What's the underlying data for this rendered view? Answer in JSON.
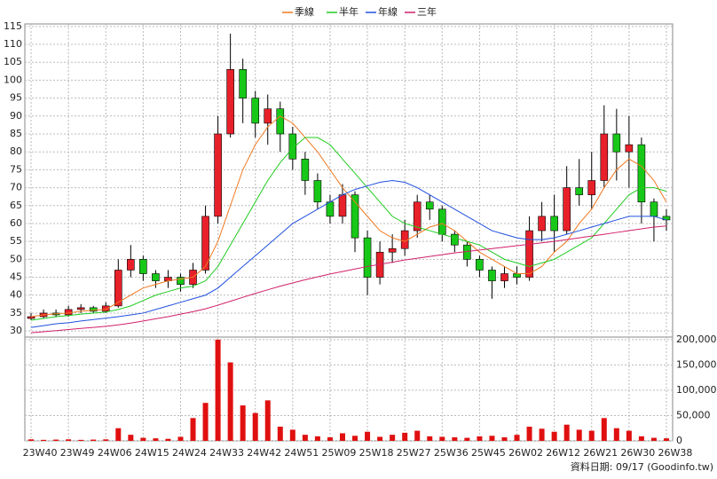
{
  "chart_data": {
    "type": "candlestick",
    "source": "資料日期: 09/17  (Goodinfo.tw)",
    "categories": [
      "23W40",
      null,
      null,
      "23W49",
      null,
      null,
      "24W06",
      null,
      null,
      "24W15",
      null,
      null,
      "24W24",
      null,
      null,
      "24W33",
      null,
      null,
      "24W42",
      null,
      null,
      "24W51",
      null,
      null,
      "25W09",
      null,
      null,
      "25W18",
      null,
      null,
      "25W27",
      null,
      null,
      "25W36",
      null,
      null,
      "25W45",
      null,
      null,
      "26W02",
      null,
      null,
      "26W12",
      null,
      null,
      "26W21",
      null,
      null,
      "26W30",
      null,
      null,
      "26W38"
    ],
    "open": [
      33.5,
      34,
      35,
      34.5,
      36,
      36.5,
      35.5,
      37,
      47,
      50,
      46,
      44,
      45,
      43,
      47,
      62,
      85,
      103,
      95,
      88,
      92,
      85,
      78,
      72,
      66,
      62,
      68,
      56,
      45,
      52,
      53,
      58,
      66,
      64,
      57,
      54,
      50,
      47,
      44,
      46,
      45,
      58,
      62,
      58,
      70,
      68,
      72,
      85,
      80,
      82,
      66,
      62
    ],
    "high": [
      35,
      36,
      36,
      37,
      37.5,
      37,
      38,
      50,
      54,
      51,
      47,
      47,
      46,
      49,
      65,
      90,
      113,
      106,
      97,
      96,
      94,
      87,
      80,
      74,
      68,
      71,
      69,
      58,
      55,
      57,
      61,
      68,
      68,
      65,
      58,
      55,
      51,
      48,
      48,
      48,
      62,
      66,
      68,
      76,
      78,
      80,
      93,
      92,
      90,
      84,
      67,
      64
    ],
    "low": [
      33,
      33.5,
      33.8,
      34,
      35,
      35,
      35,
      36.5,
      45,
      44,
      42,
      42,
      41,
      42,
      46,
      60,
      84,
      88,
      84,
      82,
      80,
      75,
      68,
      64,
      60,
      60,
      52,
      40,
      43,
      49,
      51,
      56,
      61,
      55,
      52,
      48,
      45,
      39,
      42,
      43,
      44,
      55,
      52,
      57,
      65,
      64,
      70,
      72,
      70,
      60,
      55,
      58
    ],
    "close": [
      34,
      35,
      34.5,
      36,
      36.5,
      35.5,
      37,
      47,
      50,
      46,
      44,
      45,
      43,
      47,
      62,
      85,
      103,
      95,
      88,
      92,
      85,
      78,
      72,
      66,
      62,
      68,
      56,
      45,
      52,
      53,
      58,
      66,
      64,
      57,
      54,
      50,
      47,
      44,
      46,
      45,
      58,
      62,
      58,
      70,
      68,
      72,
      85,
      80,
      82,
      66,
      62,
      61
    ],
    "up_color": "#e8202a",
    "down_color": "#18c818",
    "volume": [
      3000,
      2000,
      2500,
      3000,
      2000,
      2500,
      3000,
      25000,
      12000,
      6000,
      5000,
      4000,
      8000,
      45000,
      75000,
      200000,
      155000,
      70000,
      55000,
      80000,
      28000,
      22000,
      12000,
      9000,
      7000,
      15000,
      10000,
      18000,
      8000,
      12000,
      16000,
      20000,
      9000,
      8000,
      7000,
      6000,
      9000,
      10000,
      7000,
      12000,
      28000,
      24000,
      18000,
      32000,
      22000,
      20000,
      45000,
      25000,
      20000,
      9000,
      6000,
      5000
    ],
    "volume_color": "#e01010",
    "series": [
      {
        "name": "季線",
        "color": "#f07820",
        "values": [
          34,
          34.5,
          34.8,
          35,
          35.5,
          35.8,
          36,
          38,
          40,
          42,
          43,
          44,
          44.5,
          45,
          48,
          55,
          65,
          75,
          82,
          87,
          90,
          88,
          84,
          80,
          75,
          70,
          66,
          62,
          58,
          56,
          55,
          57,
          59,
          60,
          58,
          55,
          52,
          50,
          48,
          46,
          46,
          48,
          52,
          55,
          60,
          64,
          70,
          75,
          78,
          76,
          72,
          66
        ]
      },
      {
        "name": "半年",
        "color": "#20cc20",
        "values": [
          33,
          33.5,
          34,
          34.3,
          34.7,
          35,
          35.3,
          36,
          37,
          38.5,
          40,
          41,
          42,
          42.5,
          44,
          48,
          54,
          60,
          66,
          72,
          77,
          81,
          84,
          84,
          82,
          78,
          74,
          70,
          66,
          62,
          60,
          59,
          58,
          57,
          56,
          55,
          54,
          52,
          50,
          49,
          48,
          49,
          50,
          52,
          54,
          56,
          60,
          64,
          68,
          70,
          70,
          69
        ]
      },
      {
        "name": "年線",
        "color": "#2050e0",
        "values": [
          31,
          31.5,
          32,
          32.3,
          32.8,
          33.2,
          33.6,
          34,
          34.5,
          35,
          36,
          37,
          38,
          39,
          40,
          42,
          45,
          48,
          51,
          54,
          57,
          60,
          62,
          64,
          66,
          68,
          69.5,
          70.5,
          71.5,
          72,
          71.5,
          70,
          68,
          66,
          64,
          62,
          60,
          58,
          57,
          56,
          55.5,
          55.5,
          56,
          57,
          58,
          59,
          60,
          61,
          62,
          62,
          62,
          61
        ]
      },
      {
        "name": "三年",
        "color": "#d0206a",
        "values": [
          29.5,
          29.8,
          30.1,
          30.4,
          30.7,
          31,
          31.3,
          31.7,
          32.2,
          32.8,
          33.4,
          34,
          34.7,
          35.4,
          36.2,
          37.2,
          38.3,
          39.4,
          40.5,
          41.5,
          42.5,
          43.4,
          44.3,
          45.1,
          45.9,
          46.6,
          47.3,
          48,
          48.6,
          49.2,
          49.8,
          50.3,
          50.8,
          51.3,
          51.8,
          52.2,
          52.6,
          53,
          53.4,
          53.8,
          54.2,
          54.6,
          55,
          55.5,
          56,
          56.5,
          57,
          57.5,
          58,
          58.5,
          59,
          59.3
        ]
      }
    ],
    "ylim": [
      28.3,
      115.7
    ],
    "yticks": [
      30,
      35,
      40,
      45,
      50,
      55,
      60,
      65,
      70,
      75,
      80,
      85,
      90,
      95,
      100,
      105,
      110,
      115
    ],
    "y2lim": [
      0,
      205000
    ],
    "y2ticks": [
      0,
      {
        "value": 50000,
        "label": "50,000"
      },
      {
        "value": 100000,
        "label": "100,000"
      },
      {
        "value": 150000,
        "label": "150,000"
      },
      {
        "value": 200000,
        "label": "200,000"
      }
    ],
    "grid": true
  }
}
